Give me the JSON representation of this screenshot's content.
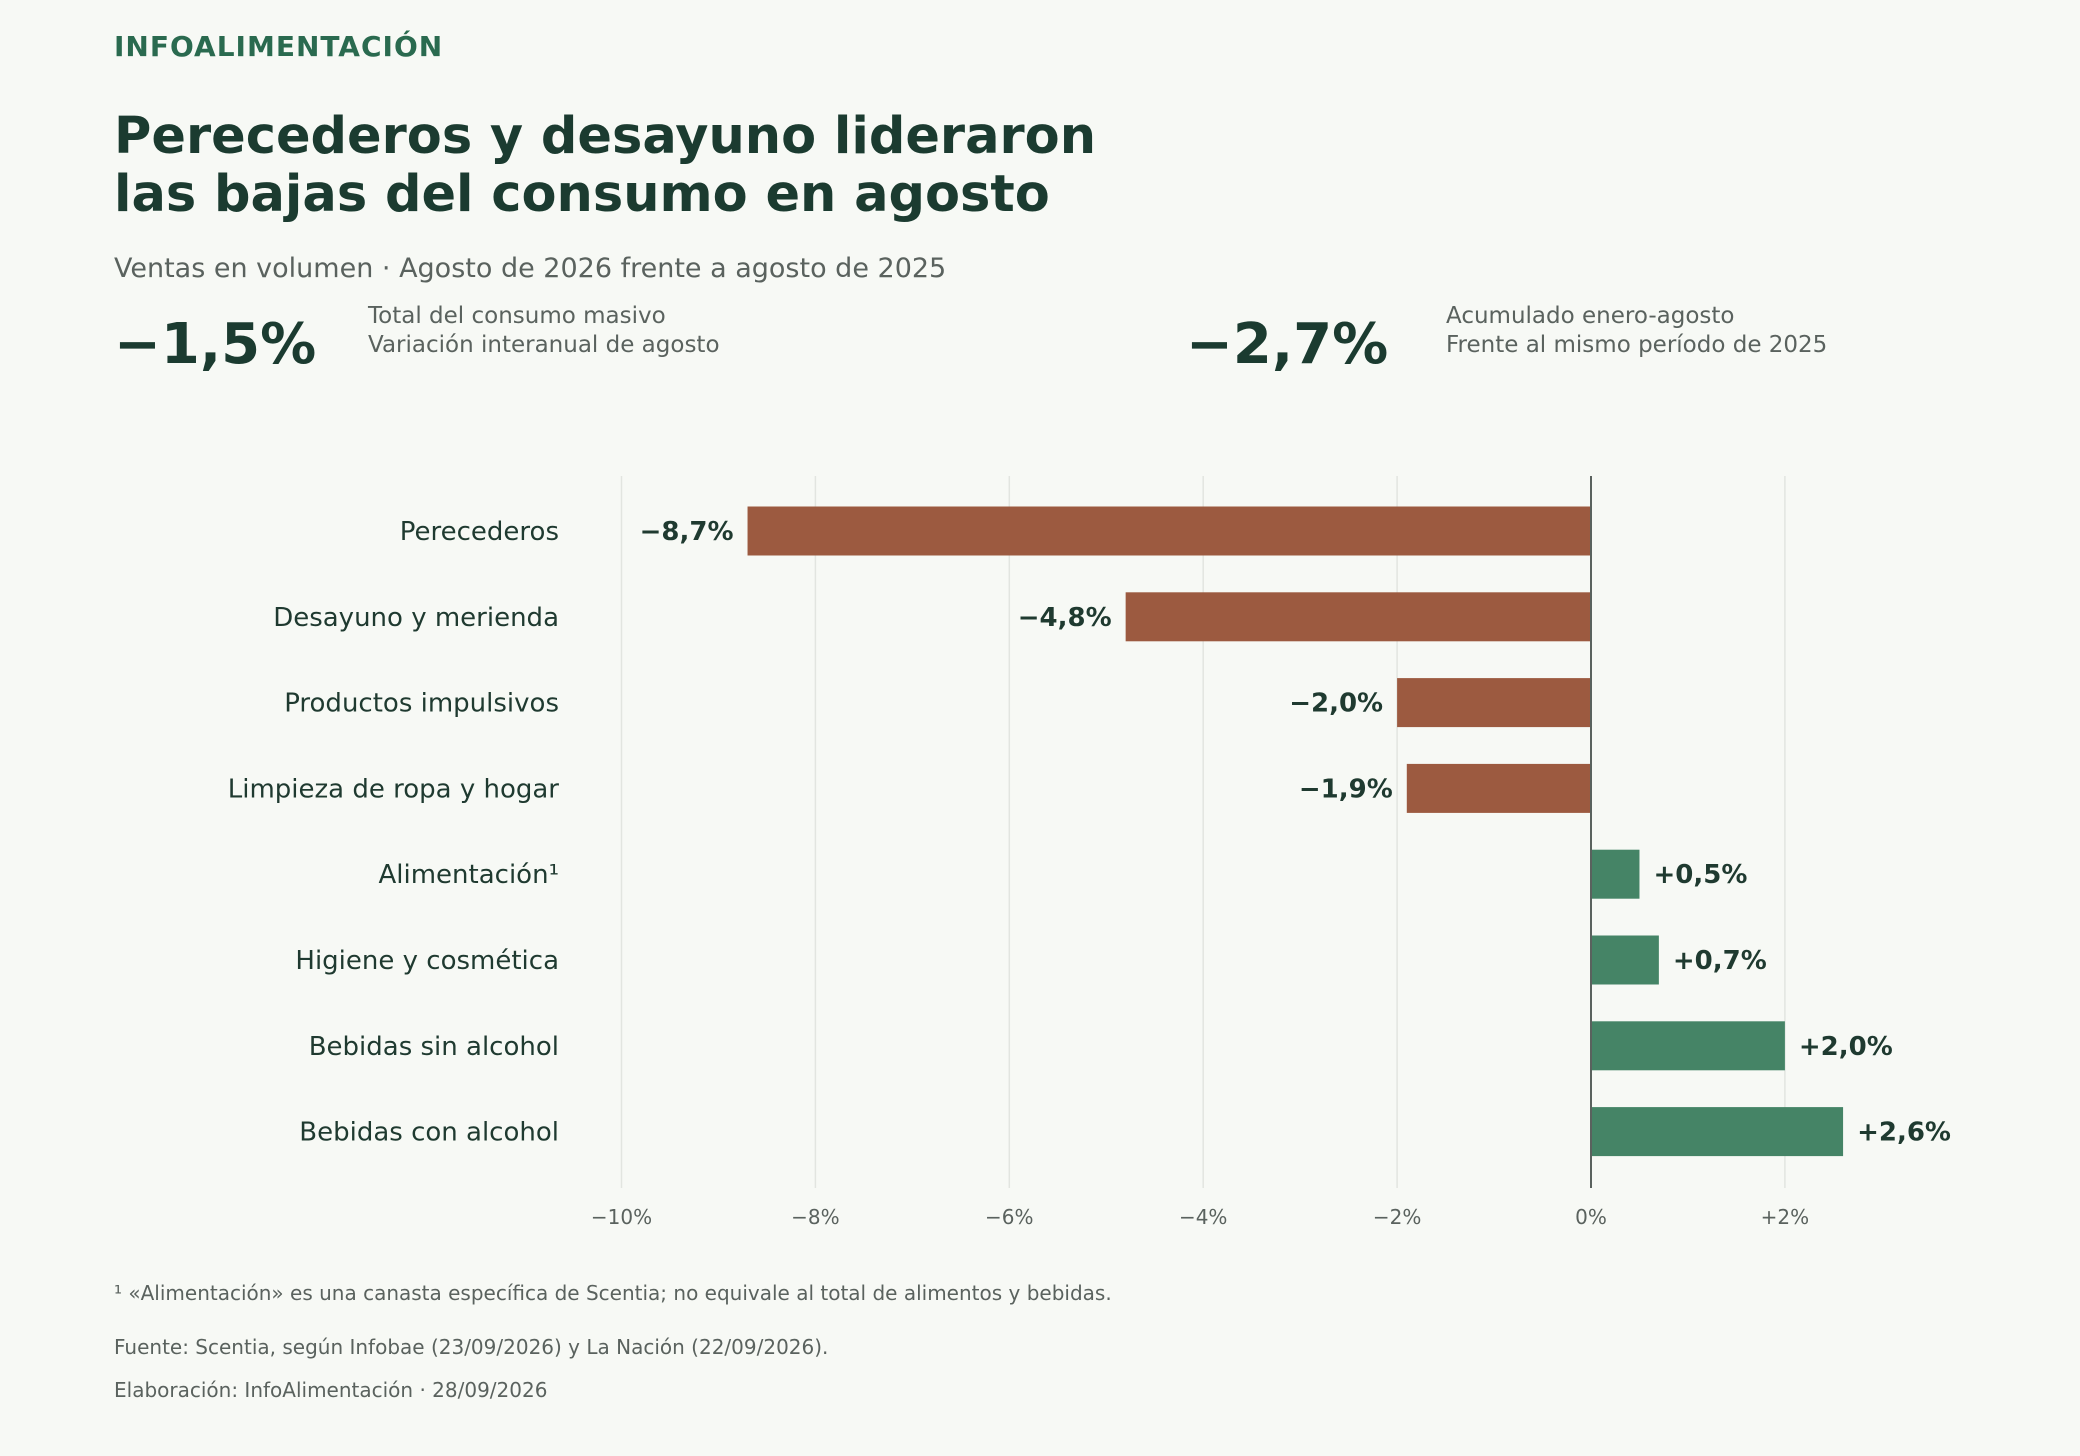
{
  "brand": "INFOALIMENTACIÓN",
  "title_lines": [
    "Perecederos y desayuno lideraron",
    "las bajas del consumo en agosto"
  ],
  "subtitle": "Ventas en volumen · Agosto de 2026 frente a agosto de 2025",
  "kpis": [
    {
      "value": "−1,5%",
      "label1": "Total del consumo masivo",
      "label2": "Variación interanual de agosto"
    },
    {
      "value": "−2,7%",
      "label1": "Acumulado enero-agosto",
      "label2": "Frente al mismo período de 2025"
    }
  ],
  "chart_data": {
    "type": "bar",
    "orientation": "horizontal",
    "categories": [
      "Perecederos",
      "Desayuno y merienda",
      "Productos impulsivos",
      "Limpieza de ropa y hogar",
      "Alimentación¹",
      "Higiene y cosmética",
      "Bebidas sin alcohol",
      "Bebidas con alcohol"
    ],
    "values": [
      -8.7,
      -4.8,
      -2.0,
      -1.9,
      0.5,
      0.7,
      2.0,
      2.6
    ],
    "value_labels": [
      "−8,7%",
      "−4,8%",
      "−2,0%",
      "−1,9%",
      "+0,5%",
      "+0,7%",
      "+2,0%",
      "+2,6%"
    ],
    "xlim": [
      -10,
      3.5
    ],
    "xticks": [
      -10,
      -8,
      -6,
      -4,
      -2,
      0,
      2
    ],
    "xtick_labels": [
      "−10%",
      "−8%",
      "−6%",
      "−4%",
      "−2%",
      "0%",
      "+2%"
    ],
    "grid": "vertical",
    "colors": {
      "negative": "#9c5a40",
      "positive": "#458466",
      "grid": "#e2e5e0",
      "zero_line": "#5a625e"
    }
  },
  "footnotes": {
    "note": "¹ «Alimentación» es una canasta específica de Scentia; no equivale al total de alimentos y bebidas.",
    "source": "Fuente: Scentia, según Infobae (23/09/2026) y La Nación (22/09/2026).",
    "credit": "Elaboración: InfoAlimentación · 28/09/2026"
  }
}
